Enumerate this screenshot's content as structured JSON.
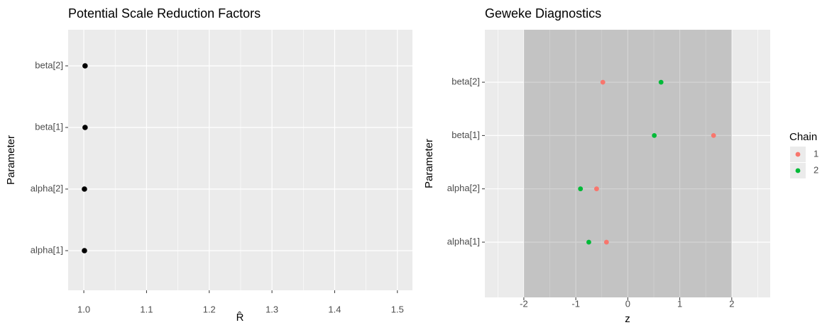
{
  "chart_data": [
    {
      "type": "dot",
      "title": "Potential Scale Reduction Factors",
      "x_label": "R̂",
      "y_label": "Parameter",
      "categories": [
        "alpha[1]",
        "alpha[2]",
        "beta[1]",
        "beta[2]"
      ],
      "values": [
        1.001,
        1.001,
        1.002,
        1.002
      ],
      "color": "#000000",
      "xlim": [
        0.975,
        1.524
      ],
      "xticks": [
        {
          "value": 1,
          "label": "1.0"
        },
        1.1,
        1.2,
        1.3,
        1.4,
        1.5
      ],
      "xminor_ticks": [
        1.05,
        1.15,
        1.25,
        1.35,
        1.45
      ],
      "grid": true
    },
    {
      "type": "dot",
      "title": "Geweke Diagnostics",
      "x_label": "z",
      "y_label": "Parameter",
      "categories": [
        "alpha[1]",
        "alpha[2]",
        "beta[1]",
        "beta[2]"
      ],
      "series": [
        {
          "name": "1",
          "color": "#F8766D",
          "values": [
            -0.41,
            -0.6,
            1.65,
            -0.48
          ]
        },
        {
          "name": "2",
          "color": "#00BA38",
          "values": [
            -0.75,
            -0.91,
            0.51,
            0.64
          ]
        }
      ],
      "legend_title": "Chain",
      "legend": "right",
      "band": [
        -2,
        2
      ],
      "xlim": [
        -2.75,
        2.74
      ],
      "xticks": [
        -2,
        -1,
        0,
        1,
        2
      ],
      "xminor_ticks": [
        -2.5,
        -1.5,
        -0.5,
        0.5,
        1.5,
        2.5
      ],
      "grid": true
    }
  ]
}
